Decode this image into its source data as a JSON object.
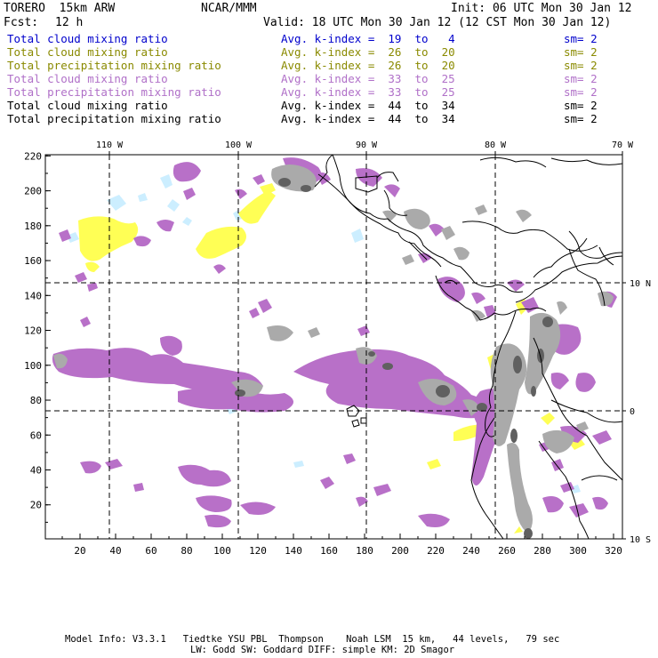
{
  "header": {
    "model": "TORERO  15km ARW",
    "org": "NCAR/MMM",
    "init": "Init: 06 UTC Mon 30 Jan 12",
    "fcst_label": "Fcst:",
    "fcst_value": "12 h",
    "valid": "Valid: 18 UTC Mon 30 Jan 12 (12 CST Mon 30 Jan 12)"
  },
  "legend": [
    {
      "field": "Total cloud mixing ratio",
      "avg": "Avg. k-index =  19  to   4",
      "sm": "sm= 2",
      "color": "#0000cc"
    },
    {
      "field": "Total cloud mixing ratio",
      "avg": "Avg. k-index =  26  to  20",
      "sm": "sm= 2",
      "color": "#8a8a00"
    },
    {
      "field": "Total precipitation mixing ratio",
      "avg": "Avg. k-index =  26  to  20",
      "sm": "sm= 2",
      "color": "#8a8a00"
    },
    {
      "field": "Total cloud mixing ratio",
      "avg": "Avg. k-index =  33  to  25",
      "sm": "sm= 2",
      "color": "#b070c8"
    },
    {
      "field": "Total precipitation mixing ratio",
      "avg": "Avg. k-index =  33  to  25",
      "sm": "sm= 2",
      "color": "#b070c8"
    },
    {
      "field": "Total cloud mixing ratio",
      "avg": "Avg. k-index =  44  to  34",
      "sm": "sm= 2",
      "color": "#000000"
    },
    {
      "field": "Total precipitation mixing ratio",
      "avg": "Avg. k-index =  44  to  34",
      "sm": "sm= 2",
      "color": "#000000"
    }
  ],
  "map": {
    "x_ticks": [
      "20",
      "40",
      "60",
      "80",
      "100",
      "120",
      "140",
      "160",
      "180",
      "200",
      "220",
      "240",
      "260",
      "280",
      "300",
      "320"
    ],
    "y_ticks": [
      "220",
      "200",
      "180",
      "160",
      "140",
      "120",
      "100",
      "80",
      "60",
      "40",
      "20"
    ],
    "lon_labels": [
      "110 W",
      "100 W",
      "90 W",
      "80 W",
      "70 W"
    ],
    "lat_labels": [
      "10 N",
      "0",
      "10 S"
    ],
    "colors": {
      "light_cloud": "#cceeff",
      "yellow": "#ffff55",
      "purple": "#b060c0",
      "purple_fill": "#b870c8",
      "gray": "#aaaaaa",
      "dark_gray": "#606060",
      "coast": "#000000"
    }
  },
  "footer": {
    "line1": "Model Info: V3.3.1   Tiedtke YSU PBL  Thompson    Noah LSM  15 km,   44 levels,   79 sec",
    "line2": "LW: Godd SW: Goddard DIFF: simple KM: 2D Smagor"
  }
}
